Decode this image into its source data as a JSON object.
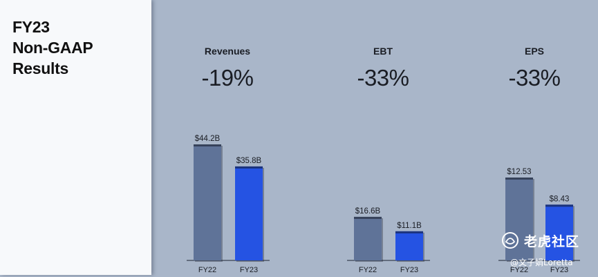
{
  "sidebar": {
    "title_lines": [
      "FY23",
      "Non-GAAP",
      "Results"
    ]
  },
  "colors": {
    "fy22_bar": "#5f7398",
    "fy23_bar": "#2553e3",
    "background": "#a9b6c9",
    "sidebar": "#f7f9fb",
    "text": "#1a1d24"
  },
  "chart_data": [
    {
      "type": "bar",
      "title": "Revenues",
      "change": "-19%",
      "categories": [
        "FY22",
        "FY23"
      ],
      "values": [
        44.2,
        35.8
      ],
      "value_labels": [
        "$44.2B",
        "$35.8B"
      ],
      "unit": "$B"
    },
    {
      "type": "bar",
      "title": "EBT",
      "change": "-33%",
      "categories": [
        "FY22",
        "FY23"
      ],
      "values": [
        16.6,
        11.1
      ],
      "value_labels": [
        "$16.6B",
        "$11.1B"
      ],
      "unit": "$B"
    },
    {
      "type": "bar",
      "title": "EPS",
      "change": "-33%",
      "categories": [
        "FY22",
        "FY23"
      ],
      "values": [
        12.53,
        8.43
      ],
      "value_labels": [
        "$12.53",
        "$8.43"
      ],
      "unit": "$"
    }
  ],
  "watermark": {
    "brand": "老虎社区",
    "user": "@文子娟Loretta",
    "logo_icon": "tiger-community-logo-icon"
  }
}
